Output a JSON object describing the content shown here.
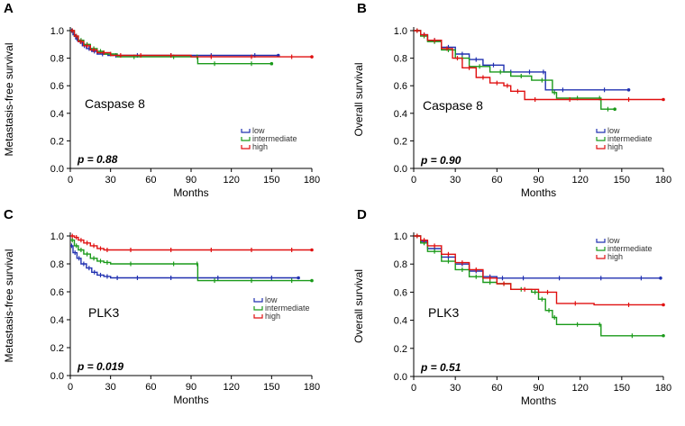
{
  "chart_data": [
    {
      "type": "line",
      "panel": "A",
      "gene": "Caspase 8",
      "ylabel": "Metastasis-free survival",
      "xlabel": "Months",
      "xlim": [
        0,
        180
      ],
      "ylim": [
        0,
        1
      ],
      "xticks": [
        0,
        30,
        60,
        90,
        120,
        150,
        180
      ],
      "yticks": [
        "0.0",
        "0.2",
        "0.4",
        "0.6",
        "0.8",
        "1.0"
      ],
      "pvalue": "p = 0.88",
      "legend": [
        "low",
        "intermediate",
        "high"
      ],
      "series": [
        {
          "name": "low",
          "color": "#2030b0",
          "x": [
            0,
            2,
            4,
            6,
            9,
            12,
            16,
            20,
            28,
            40,
            60,
            90,
            120,
            155
          ],
          "y": [
            1.0,
            0.97,
            0.94,
            0.92,
            0.89,
            0.87,
            0.85,
            0.83,
            0.82,
            0.82,
            0.82,
            0.82,
            0.82,
            0.82
          ]
        },
        {
          "name": "intermediate",
          "color": "#1a9a1a",
          "x": [
            0,
            3,
            6,
            10,
            15,
            20,
            25,
            35,
            60,
            94,
            95,
            120,
            150
          ],
          "y": [
            1.0,
            0.96,
            0.93,
            0.9,
            0.87,
            0.85,
            0.83,
            0.81,
            0.81,
            0.81,
            0.76,
            0.76,
            0.76
          ]
        },
        {
          "name": "high",
          "color": "#e01010",
          "x": [
            0,
            3,
            6,
            10,
            15,
            20,
            30,
            45,
            60,
            90,
            120,
            150,
            180
          ],
          "y": [
            1.0,
            0.96,
            0.92,
            0.89,
            0.86,
            0.84,
            0.82,
            0.82,
            0.82,
            0.81,
            0.81,
            0.81,
            0.81
          ]
        }
      ]
    },
    {
      "type": "line",
      "panel": "B",
      "gene": "Caspase 8",
      "ylabel": "Overall survival",
      "xlabel": "Months",
      "xlim": [
        0,
        180
      ],
      "ylim": [
        0,
        1
      ],
      "xticks": [
        0,
        30,
        60,
        90,
        120,
        150,
        180
      ],
      "yticks": [
        "0.0",
        "0.2",
        "0.4",
        "0.6",
        "0.8",
        "1.0"
      ],
      "pvalue": "p = 0.90",
      "legend": [
        "low",
        "intermediate",
        "high"
      ],
      "series": [
        {
          "name": "low",
          "color": "#2030b0",
          "x": [
            0,
            5,
            10,
            20,
            30,
            40,
            50,
            65,
            75,
            92,
            95,
            120,
            155
          ],
          "y": [
            1.0,
            0.97,
            0.93,
            0.88,
            0.83,
            0.79,
            0.75,
            0.7,
            0.7,
            0.7,
            0.57,
            0.57,
            0.57
          ]
        },
        {
          "name": "intermediate",
          "color": "#1a9a1a",
          "x": [
            0,
            5,
            10,
            20,
            30,
            40,
            55,
            70,
            85,
            100,
            103,
            133,
            135,
            145
          ],
          "y": [
            1.0,
            0.96,
            0.92,
            0.86,
            0.8,
            0.74,
            0.7,
            0.67,
            0.64,
            0.55,
            0.51,
            0.51,
            0.43,
            0.43
          ]
        },
        {
          "name": "high",
          "color": "#e01010",
          "x": [
            0,
            5,
            10,
            20,
            28,
            35,
            45,
            55,
            65,
            70,
            80,
            95,
            130,
            180
          ],
          "y": [
            1.0,
            0.97,
            0.93,
            0.87,
            0.8,
            0.73,
            0.66,
            0.62,
            0.6,
            0.56,
            0.5,
            0.5,
            0.5,
            0.5
          ]
        }
      ]
    },
    {
      "type": "line",
      "panel": "C",
      "gene": "PLK3",
      "ylabel": "Metastasis-free survival",
      "xlabel": "Months",
      "xlim": [
        0,
        180
      ],
      "ylim": [
        0,
        1
      ],
      "xticks": [
        0,
        30,
        60,
        90,
        120,
        150,
        180
      ],
      "yticks": [
        "0.0",
        "0.2",
        "0.4",
        "0.6",
        "0.8",
        "1.0"
      ],
      "pvalue": "p = 0.019",
      "legend": [
        "low",
        "intermediate",
        "high"
      ],
      "series": [
        {
          "name": "low",
          "color": "#2030b0",
          "x": [
            0,
            2,
            5,
            8,
            12,
            16,
            20,
            25,
            30,
            40,
            60,
            90,
            130,
            170
          ],
          "y": [
            0.93,
            0.88,
            0.84,
            0.8,
            0.77,
            0.74,
            0.72,
            0.71,
            0.7,
            0.7,
            0.7,
            0.7,
            0.7,
            0.7
          ]
        },
        {
          "name": "intermediate",
          "color": "#1a9a1a",
          "x": [
            0,
            3,
            6,
            10,
            15,
            20,
            25,
            30,
            60,
            94,
            95,
            120,
            150,
            180
          ],
          "y": [
            0.97,
            0.93,
            0.9,
            0.87,
            0.84,
            0.82,
            0.81,
            0.8,
            0.8,
            0.8,
            0.68,
            0.68,
            0.68,
            0.68
          ]
        },
        {
          "name": "high",
          "color": "#e01010",
          "x": [
            0,
            3,
            6,
            10,
            15,
            20,
            25,
            30,
            60,
            90,
            120,
            150,
            180
          ],
          "y": [
            1.0,
            0.99,
            0.97,
            0.95,
            0.93,
            0.91,
            0.9,
            0.9,
            0.9,
            0.9,
            0.9,
            0.9,
            0.9
          ]
        }
      ]
    },
    {
      "type": "line",
      "panel": "D",
      "gene": "PLK3",
      "ylabel": "Overall survival",
      "xlabel": "Months",
      "xlim": [
        0,
        180
      ],
      "ylim": [
        0,
        1
      ],
      "xticks": [
        0,
        30,
        60,
        90,
        120,
        150,
        180
      ],
      "yticks": [
        "0.0",
        "0.2",
        "0.4",
        "0.6",
        "0.8",
        "1.0"
      ],
      "pvalue": "p = 0.51",
      "legend": [
        "low",
        "intermediate",
        "high"
      ],
      "series": [
        {
          "name": "low",
          "color": "#2030b0",
          "x": [
            0,
            5,
            10,
            20,
            30,
            40,
            50,
            60,
            68,
            90,
            120,
            150,
            178
          ],
          "y": [
            1.0,
            0.96,
            0.91,
            0.85,
            0.8,
            0.75,
            0.71,
            0.7,
            0.7,
            0.7,
            0.7,
            0.7,
            0.7
          ]
        },
        {
          "name": "intermediate",
          "color": "#1a9a1a",
          "x": [
            0,
            5,
            10,
            20,
            30,
            40,
            50,
            60,
            70,
            85,
            90,
            95,
            100,
            103,
            133,
            135,
            180
          ],
          "y": [
            1.0,
            0.95,
            0.89,
            0.82,
            0.76,
            0.71,
            0.67,
            0.66,
            0.62,
            0.6,
            0.55,
            0.47,
            0.42,
            0.37,
            0.37,
            0.29,
            0.29
          ]
        },
        {
          "name": "high",
          "color": "#e01010",
          "x": [
            0,
            5,
            10,
            20,
            30,
            40,
            50,
            60,
            70,
            90,
            103,
            130,
            180
          ],
          "y": [
            1.0,
            0.97,
            0.93,
            0.87,
            0.81,
            0.76,
            0.7,
            0.66,
            0.62,
            0.6,
            0.52,
            0.51,
            0.51
          ]
        }
      ]
    }
  ]
}
